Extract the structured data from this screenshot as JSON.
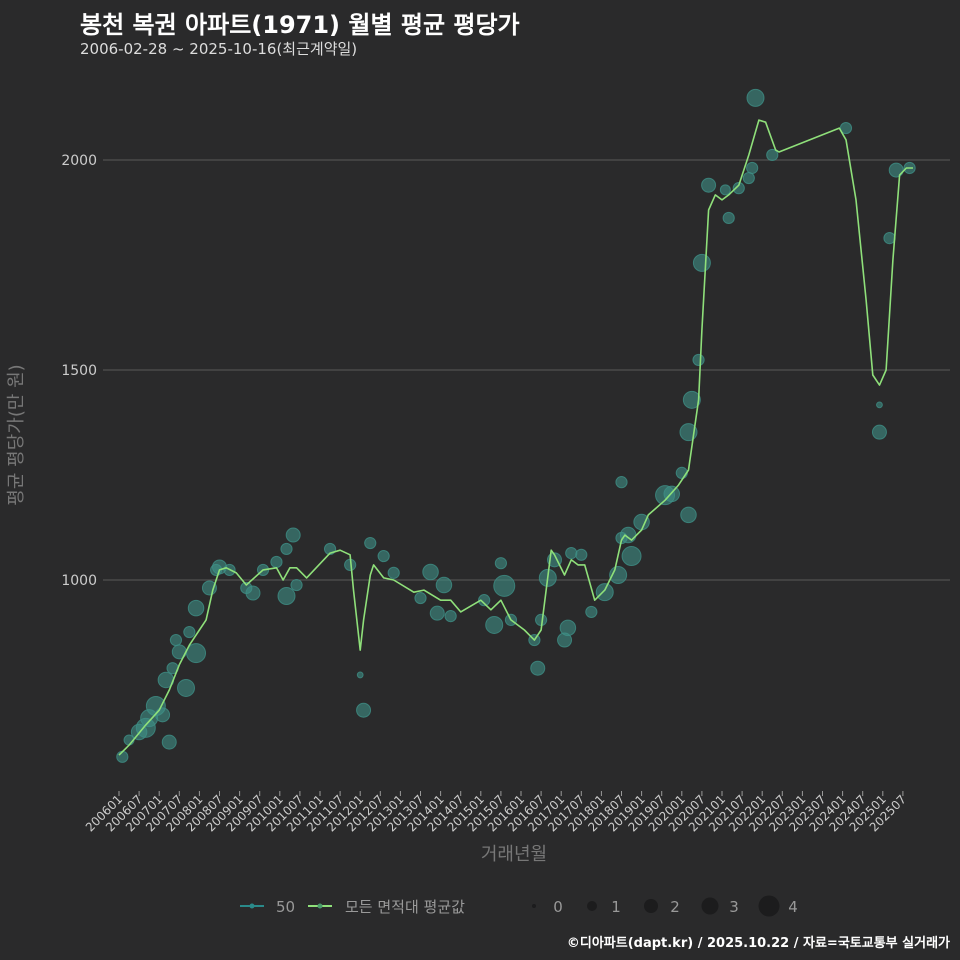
{
  "title": "봉천 복권 아파트(1971) 월별 평균 평당가",
  "subtitle": "2006-02-28 ~ 2025-10-16(최근계약일)",
  "footer": "©디아파트(dapt.kr) / 2025.10.22 / 자료=국토교통부 실거래가",
  "colors": {
    "background": "#2a2a2b",
    "grid": "#5a5a5a",
    "line": "#8fe07a",
    "bubble": "#3f8f86",
    "series50": "#2a8a8a"
  },
  "chart_data": {
    "type": "line",
    "title": "봉천 복권 아파트(1971) 월별 평균 평당가",
    "xlabel": "거래년월",
    "ylabel": "평균 평당가(만 원)",
    "x_unit": "months since 2006-01",
    "ylim": [
      450,
      2210
    ],
    "yticks": [
      1000,
      1500,
      2000
    ],
    "xticks": [
      "200601",
      "200607",
      "200701",
      "200707",
      "200801",
      "200807",
      "200901",
      "200907",
      "201001",
      "201007",
      "201101",
      "201107",
      "201201",
      "201207",
      "201301",
      "201307",
      "201401",
      "201407",
      "201501",
      "201507",
      "201601",
      "201607",
      "201701",
      "201707",
      "201801",
      "201807",
      "201901",
      "201907",
      "202001",
      "202007",
      "202101",
      "202107",
      "202201",
      "202207",
      "202301",
      "202307",
      "202401",
      "202407",
      "202501",
      "202507"
    ],
    "legend": {
      "position": "bottom",
      "series": [
        {
          "label": "50"
        },
        {
          "label": "모든 면적대 평균값"
        }
      ],
      "size_title": "",
      "sizes": [
        "0",
        "1",
        "2",
        "3",
        "4"
      ]
    },
    "average_line": [
      [
        0,
        583
      ],
      [
        3,
        607
      ],
      [
        8,
        655
      ],
      [
        12,
        690
      ],
      [
        15,
        738
      ],
      [
        18,
        798
      ],
      [
        21,
        845
      ],
      [
        24,
        881
      ],
      [
        26,
        905
      ],
      [
        28,
        976
      ],
      [
        30,
        1024
      ],
      [
        32,
        1029
      ],
      [
        35,
        1017
      ],
      [
        38,
        988
      ],
      [
        43,
        1024
      ],
      [
        47,
        1029
      ],
      [
        49,
        1000
      ],
      [
        51,
        1029
      ],
      [
        53,
        1029
      ],
      [
        56,
        1005
      ],
      [
        63,
        1064
      ],
      [
        66,
        1071
      ],
      [
        69,
        1060
      ],
      [
        70,
        976
      ],
      [
        72,
        833
      ],
      [
        73,
        905
      ],
      [
        75,
        1012
      ],
      [
        76,
        1036
      ],
      [
        79,
        1005
      ],
      [
        82,
        1000
      ],
      [
        88,
        971
      ],
      [
        91,
        976
      ],
      [
        96,
        952
      ],
      [
        99,
        952
      ],
      [
        102,
        924
      ],
      [
        108,
        952
      ],
      [
        111,
        929
      ],
      [
        114,
        952
      ],
      [
        117,
        905
      ],
      [
        121,
        881
      ],
      [
        124,
        857
      ],
      [
        126,
        881
      ],
      [
        129,
        1071
      ],
      [
        130,
        1060
      ],
      [
        133,
        1012
      ],
      [
        135,
        1048
      ],
      [
        137,
        1036
      ],
      [
        139,
        1036
      ],
      [
        142,
        952
      ],
      [
        145,
        976
      ],
      [
        148,
        1024
      ],
      [
        150,
        1095
      ],
      [
        151,
        1107
      ],
      [
        153,
        1095
      ],
      [
        156,
        1119
      ],
      [
        158,
        1155
      ],
      [
        163,
        1190
      ],
      [
        167,
        1226
      ],
      [
        170,
        1262
      ],
      [
        173,
        1429
      ],
      [
        174,
        1595
      ],
      [
        176,
        1881
      ],
      [
        178,
        1917
      ],
      [
        180,
        1905
      ],
      [
        182,
        1917
      ],
      [
        185,
        1940
      ],
      [
        188,
        2012
      ],
      [
        191,
        2095
      ],
      [
        193,
        2090
      ],
      [
        196,
        2024
      ],
      [
        197,
        2019
      ],
      [
        215,
        2076
      ],
      [
        217,
        2048
      ],
      [
        220,
        1905
      ],
      [
        223,
        1667
      ],
      [
        225,
        1488
      ],
      [
        227,
        1464
      ],
      [
        229,
        1500
      ],
      [
        231,
        1762
      ],
      [
        233,
        1964
      ],
      [
        235,
        1981
      ],
      [
        237,
        1981
      ]
    ],
    "scatter_50": [
      [
        1,
        579,
        1.3
      ],
      [
        3,
        619,
        1
      ],
      [
        6,
        638,
        2.5
      ],
      [
        8,
        648,
        3.5
      ],
      [
        9,
        671,
        3
      ],
      [
        11,
        700,
        3.5
      ],
      [
        13,
        679,
        2
      ],
      [
        14,
        762,
        2.5
      ],
      [
        15,
        614,
        2
      ],
      [
        16,
        790,
        1.3
      ],
      [
        17,
        857,
        1.3
      ],
      [
        18,
        829,
        2
      ],
      [
        20,
        743,
        3
      ],
      [
        21,
        876,
        1.3
      ],
      [
        23,
        826,
        3.5
      ],
      [
        23,
        933,
        2.5
      ],
      [
        27,
        981,
        2
      ],
      [
        29,
        1024,
        1.3
      ],
      [
        30,
        1031,
        2
      ],
      [
        33,
        1024,
        1.3
      ],
      [
        38,
        981,
        1.3
      ],
      [
        40,
        969,
        2
      ],
      [
        43,
        1024,
        1.3
      ],
      [
        47,
        1043,
        1.3
      ],
      [
        50,
        962,
        3
      ],
      [
        50,
        1074,
        1.3
      ],
      [
        52,
        1107,
        2
      ],
      [
        53,
        988,
        1.3
      ],
      [
        63,
        1074,
        1.3
      ],
      [
        69,
        1036,
        1.3
      ],
      [
        72,
        774,
        0.3
      ],
      [
        73,
        690,
        2
      ],
      [
        75,
        1088,
        1.3
      ],
      [
        79,
        1057,
        1.3
      ],
      [
        82,
        1017,
        1.3
      ],
      [
        90,
        957,
        1.3
      ],
      [
        93,
        1019,
        2.5
      ],
      [
        95,
        921,
        2
      ],
      [
        97,
        988,
        2.5
      ],
      [
        99,
        914,
        1.3
      ],
      [
        109,
        952,
        1.3
      ],
      [
        112,
        893,
        3
      ],
      [
        114,
        1040,
        1.3
      ],
      [
        115,
        986,
        4
      ],
      [
        117,
        905,
        1.3
      ],
      [
        124,
        857,
        1.3
      ],
      [
        125,
        790,
        2
      ],
      [
        126,
        905,
        1.3
      ],
      [
        128,
        1005,
        3
      ],
      [
        130,
        1048,
        2
      ],
      [
        133,
        857,
        2
      ],
      [
        134,
        886,
        2.5
      ],
      [
        135,
        1064,
        1.3
      ],
      [
        138,
        1060,
        1.3
      ],
      [
        141,
        924,
        1.3
      ],
      [
        145,
        971,
        3
      ],
      [
        149,
        1012,
        3
      ],
      [
        150,
        1100,
        1.3
      ],
      [
        150,
        1233,
        1.3
      ],
      [
        152,
        1107,
        2.5
      ],
      [
        153,
        1057,
        3.5
      ],
      [
        156,
        1138,
        2.5
      ],
      [
        163,
        1202,
        3.5
      ],
      [
        165,
        1205,
        2.5
      ],
      [
        168,
        1255,
        1.3
      ],
      [
        170,
        1352,
        3
      ],
      [
        170,
        1155,
        2.5
      ],
      [
        171,
        1429,
        3
      ],
      [
        173,
        1524,
        1.3
      ],
      [
        174,
        1755,
        3
      ],
      [
        176,
        1940,
        2
      ],
      [
        181,
        1929,
        1
      ],
      [
        182,
        1862,
        1.3
      ],
      [
        185,
        1933,
        1.3
      ],
      [
        188,
        1957,
        1.3
      ],
      [
        189,
        1981,
        1.3
      ],
      [
        190,
        2148,
        3
      ],
      [
        195,
        2012,
        1.3
      ],
      [
        217,
        2076,
        1.3
      ],
      [
        227,
        1417,
        0.3
      ],
      [
        227,
        1352,
        2
      ],
      [
        230,
        1814,
        1.3
      ],
      [
        232,
        1976,
        2
      ],
      [
        236,
        1981,
        1.3
      ]
    ]
  }
}
